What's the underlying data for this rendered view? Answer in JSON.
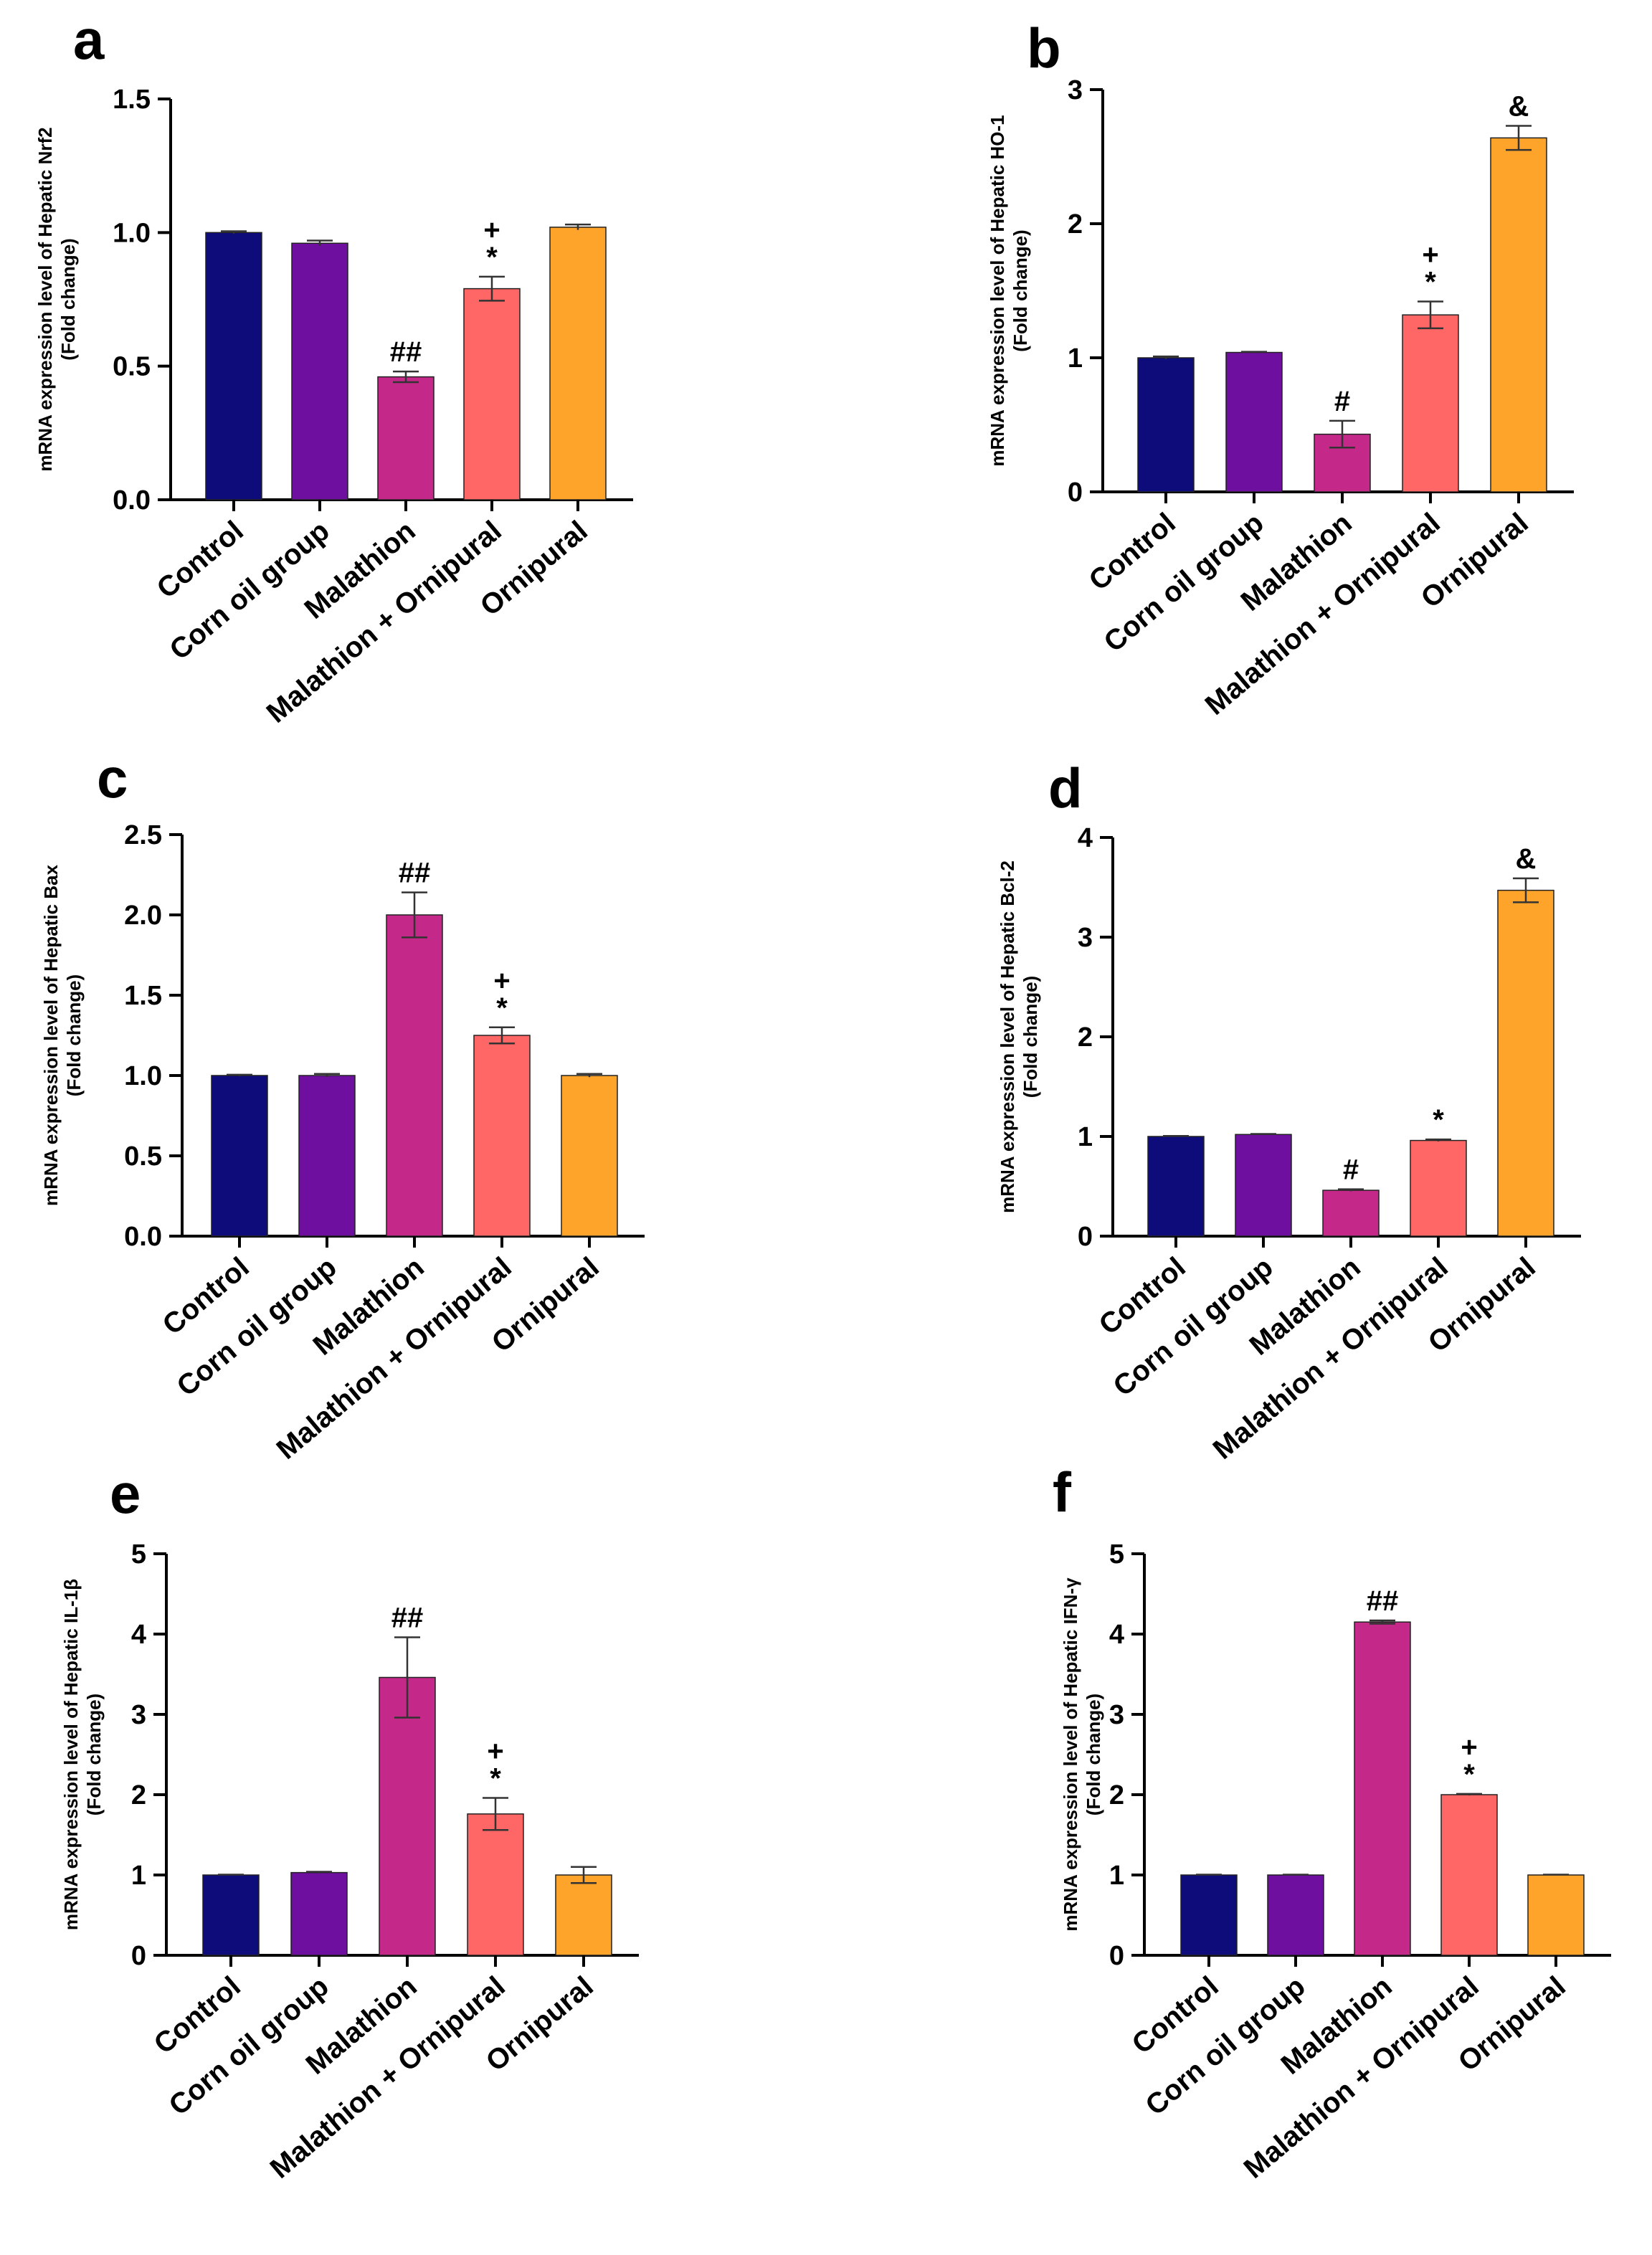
{
  "colors": {
    "Control": "#0e0b7a",
    "Corn oil group": "#6e0fa0",
    "Malathion": "#c42889",
    "Malathion + Ornipural": "#ff6666",
    "Ornipural": "#ffa42a"
  },
  "chart_data": [
    {
      "type": "bar",
      "panel": "a",
      "ylabel_line1": "mRNA expression level of  Hepatic Nrf2",
      "ylabel_line2": "(Fold change)",
      "categories": [
        "Control",
        "Corn oil group",
        "Malathion",
        "Malathion + Ornipural",
        "Ornipural"
      ],
      "values": [
        1.0,
        0.96,
        0.46,
        0.79,
        1.02
      ],
      "errors": [
        0.005,
        0.01,
        0.02,
        0.045,
        0.01
      ],
      "annotations": [
        "",
        "",
        "##",
        "+\n*",
        ""
      ],
      "ylim": [
        0,
        1.5
      ],
      "yticks": [
        "0.0",
        "0.5",
        "1.0",
        "1.5"
      ],
      "ytick_values": [
        0,
        0.5,
        1.0,
        1.5
      ]
    },
    {
      "type": "bar",
      "panel": "b",
      "ylabel_line1": "mRNA expression level of  Hepatic  HO-1",
      "ylabel_line2": "(Fold change)",
      "categories": [
        "Control",
        "Corn oil group",
        "Malathion",
        "Malathion + Ornipural",
        "Ornipural"
      ],
      "values": [
        1.0,
        1.04,
        0.43,
        1.32,
        2.64
      ],
      "errors": [
        0.01,
        0.005,
        0.1,
        0.1,
        0.09
      ],
      "annotations": [
        "",
        "",
        "#",
        "+\n*",
        "&"
      ],
      "ylim": [
        0,
        3
      ],
      "yticks": [
        "0",
        "1",
        "2",
        "3"
      ],
      "ytick_values": [
        0,
        1,
        2,
        3
      ]
    },
    {
      "type": "bar",
      "panel": "c",
      "ylabel_line1": "mRNA expression level of  Hepatic Bax",
      "ylabel_line2": "(Fold change)",
      "categories": [
        "Control",
        "Corn oil group",
        "Malathion",
        "Malathion + Ornipural",
        "Ornipural"
      ],
      "values": [
        1.0,
        1.0,
        2.0,
        1.25,
        1.0
      ],
      "errors": [
        0.005,
        0.01,
        0.14,
        0.05,
        0.01
      ],
      "annotations": [
        "",
        "",
        "##",
        "+\n*",
        ""
      ],
      "ylim": [
        0,
        2.5
      ],
      "yticks": [
        "0.0",
        "0.5",
        "1.0",
        "1.5",
        "2.0",
        "2.5"
      ],
      "ytick_values": [
        0,
        0.5,
        1.0,
        1.5,
        2.0,
        2.5
      ]
    },
    {
      "type": "bar",
      "panel": "d",
      "ylabel_line1": "mRNA expression level of  Hepatic Bcl-2",
      "ylabel_line2": "(Fold change)",
      "categories": [
        "Control",
        "Corn oil group",
        "Malathion",
        "Malathion + Ornipural",
        "Ornipural"
      ],
      "values": [
        1.0,
        1.02,
        0.46,
        0.96,
        3.47
      ],
      "errors": [
        0.005,
        0.005,
        0.01,
        0.01,
        0.12
      ],
      "annotations": [
        "",
        "",
        "#",
        "*",
        "&"
      ],
      "ylim": [
        0,
        4
      ],
      "yticks": [
        "0",
        "1",
        "2",
        "3",
        "4"
      ],
      "ytick_values": [
        0,
        1,
        2,
        3,
        4
      ]
    },
    {
      "type": "bar",
      "panel": "e",
      "ylabel_line1": "mRNA expression level of  Hepatic IL-1β",
      "ylabel_line2": "(Fold change)",
      "categories": [
        "Control",
        "Corn oil group",
        "Malathion",
        "Malathion + Ornipural",
        "Ornipural"
      ],
      "values": [
        1.0,
        1.03,
        3.46,
        1.76,
        1.0
      ],
      "errors": [
        0.005,
        0.01,
        0.5,
        0.2,
        0.1
      ],
      "annotations": [
        "",
        "",
        "##",
        "+\n*",
        ""
      ],
      "ylim": [
        0,
        5
      ],
      "yticks": [
        "0",
        "1",
        "2",
        "3",
        "4",
        "5"
      ],
      "ytick_values": [
        0,
        1,
        2,
        3,
        4,
        5
      ]
    },
    {
      "type": "bar",
      "panel": "f",
      "ylabel_line1": "mRNA expression level of  Hepatic IFN-γ",
      "ylabel_line2": "(Fold change)",
      "categories": [
        "Control",
        "Corn oil group",
        "Malathion",
        "Malathion + Ornipural",
        "Ornipural"
      ],
      "values": [
        1.0,
        1.0,
        4.15,
        2.0,
        1.0
      ],
      "errors": [
        0.005,
        0.005,
        0.02,
        0.01,
        0.005
      ],
      "annotations": [
        "",
        "",
        "##",
        "+\n*",
        ""
      ],
      "ylim": [
        0,
        5
      ],
      "yticks": [
        "0",
        "1",
        "2",
        "3",
        "4",
        "5"
      ],
      "ytick_values": [
        0,
        1,
        2,
        3,
        4,
        5
      ]
    }
  ]
}
